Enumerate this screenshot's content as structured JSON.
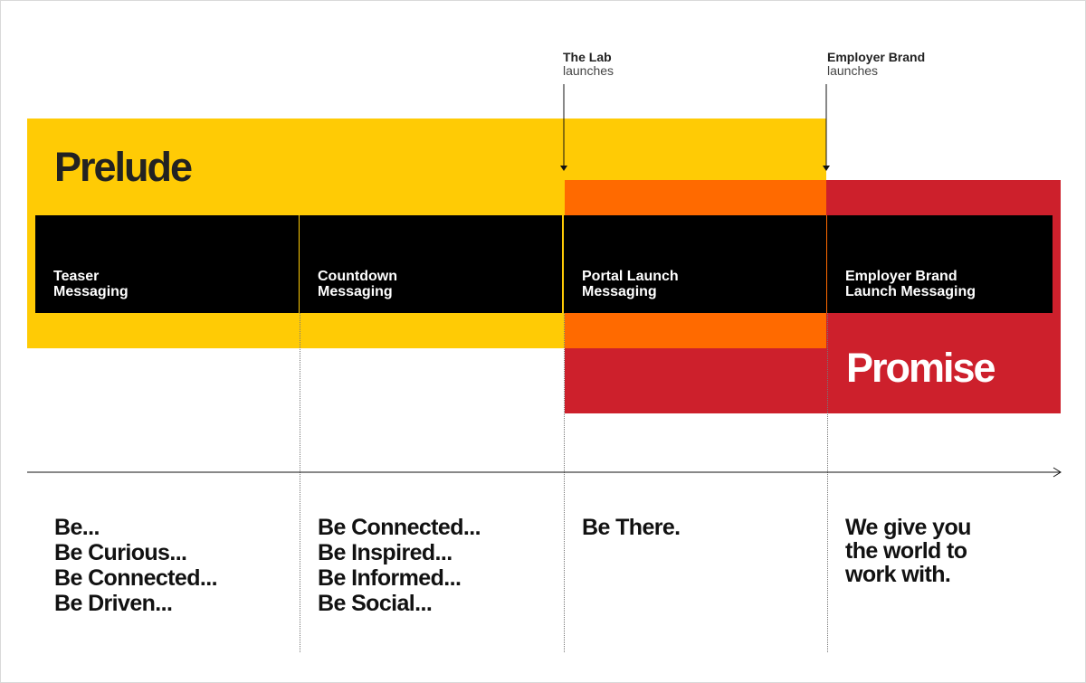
{
  "phases": {
    "prelude": {
      "title": "Prelude",
      "color": "#ffcb05"
    },
    "promise": {
      "title": "Promise",
      "color": "#cd202c"
    },
    "overlap_color": "#ff6a00"
  },
  "launches": [
    {
      "name": "The Lab",
      "sub": "launches"
    },
    {
      "name": "Employer Brand",
      "sub": "launches"
    }
  ],
  "messaging": [
    {
      "lines": [
        "Teaser",
        "Messaging"
      ]
    },
    {
      "lines": [
        "Countdown",
        "Messaging"
      ]
    },
    {
      "lines": [
        "Portal Launch",
        "Messaging"
      ]
    },
    {
      "lines": [
        "Employer Brand",
        "Launch Messaging"
      ]
    }
  ],
  "taglines": [
    {
      "lines": [
        "Be...",
        "Be Curious...",
        "Be Connected...",
        "Be Driven..."
      ]
    },
    {
      "lines": [
        "Be Connected...",
        "Be Inspired...",
        "Be Informed...",
        "Be Social..."
      ]
    },
    {
      "lines": [
        "Be There."
      ]
    },
    {
      "lines": [
        "We give you",
        "the world to",
        "work with."
      ]
    }
  ]
}
